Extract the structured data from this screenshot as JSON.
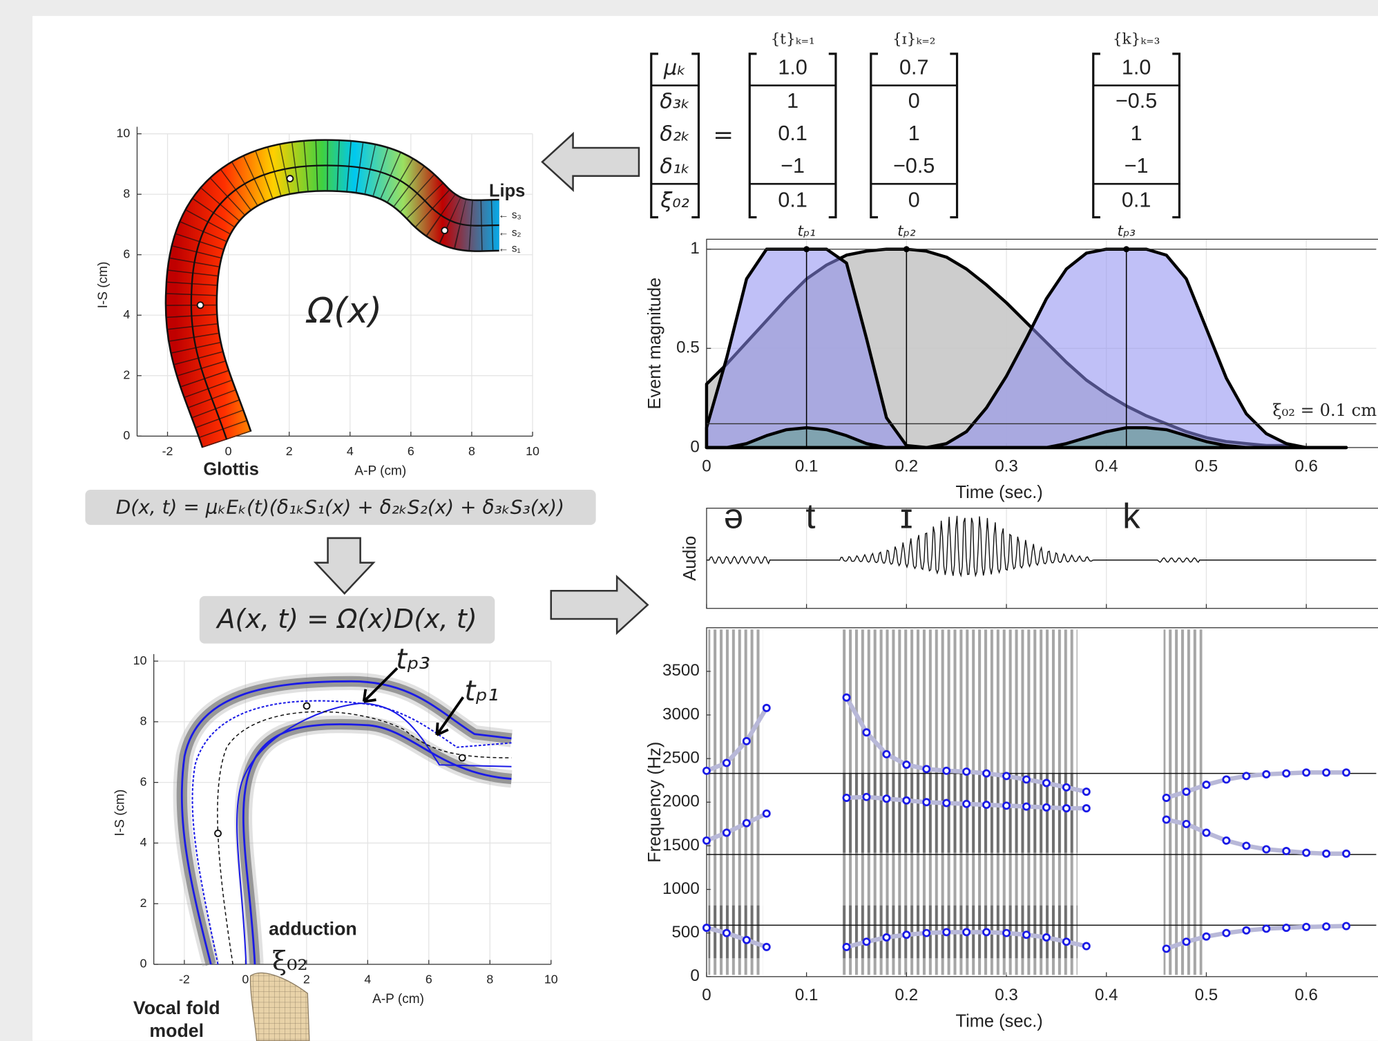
{
  "matrix": {
    "row_labels": [
      "μₖ",
      "δ₃ₖ",
      "δ₂ₖ",
      "δ₁ₖ",
      "ξ₀₂"
    ],
    "equals": "=",
    "columns": [
      {
        "header": "{t}ₖ₌₁",
        "values": [
          "1.0",
          "1",
          "0.1",
          "−1",
          "0.1"
        ]
      },
      {
        "header": "{ɪ}ₖ₌₂",
        "values": [
          "0.7",
          "0",
          "1",
          "−0.5",
          "0"
        ]
      },
      {
        "header": "{k}ₖ₌₃",
        "values": [
          "1.0",
          "−0.5",
          "1",
          "−1",
          "0.1"
        ]
      }
    ]
  },
  "equations": {
    "D": "D(x, t) = μₖEₖ(t)(δ₁ₖS₁(x) + δ₂ₖS₂(x) + δ₃ₖS₃(x))",
    "A": "A(x, t) = Ω(x)D(x, t)"
  },
  "chart_data": [
    {
      "type": "tract",
      "xlabel": "A-P (cm)",
      "ylabel": "I-S (cm)",
      "xlim": [
        -3,
        10
      ],
      "ylim": [
        0,
        10
      ],
      "xticks": [
        -2,
        0,
        2,
        4,
        6,
        8,
        10
      ],
      "yticks": [
        0,
        2,
        4,
        6,
        8,
        10
      ],
      "grid": true,
      "labels": {
        "lips": "Lips",
        "glottis": "Glottis",
        "region": "Ω(x)",
        "s3": "← s₃",
        "s2": "← s₂",
        "s1": "← s₁"
      }
    },
    {
      "type": "area",
      "xlabel": "Time (sec.)",
      "ylabel": "Event magnitude",
      "xlim": [
        0,
        0.67
      ],
      "ylim": [
        0,
        1.05
      ],
      "xticks": [
        0,
        0.1,
        0.2,
        0.3,
        0.4,
        0.5,
        0.6
      ],
      "yticks": [
        0,
        0.5,
        1
      ],
      "grid": true,
      "x": [
        0,
        0.02,
        0.04,
        0.06,
        0.08,
        0.1,
        0.12,
        0.14,
        0.16,
        0.18,
        0.2,
        0.22,
        0.24,
        0.26,
        0.28,
        0.3,
        0.32,
        0.34,
        0.36,
        0.38,
        0.4,
        0.42,
        0.44,
        0.46,
        0.48,
        0.5,
        0.52,
        0.54,
        0.56,
        0.58,
        0.6,
        0.62,
        0.64
      ],
      "series": [
        {
          "color": "#c8c8c8",
          "values": [
            0.32,
            0.42,
            0.53,
            0.64,
            0.75,
            0.85,
            0.92,
            0.97,
            0.99,
            1,
            1,
            0.99,
            0.96,
            0.9,
            0.82,
            0.73,
            0.63,
            0.53,
            0.43,
            0.34,
            0.27,
            0.21,
            0.16,
            0.12,
            0.08,
            0.05,
            0.03,
            0.02,
            0.01,
            0.01,
            0,
            0,
            0
          ]
        },
        {
          "color": "#8c8cf0",
          "values": [
            0.1,
            0.45,
            0.85,
            1,
            1,
            1,
            1,
            0.93,
            0.55,
            0.15,
            0.01,
            0,
            0,
            0,
            0,
            0,
            0,
            0,
            0,
            0,
            0,
            0,
            0,
            0,
            0,
            0,
            0,
            0,
            0,
            0,
            0,
            0,
            0
          ]
        },
        {
          "color": "#8c8cf0",
          "values": [
            0,
            0,
            0,
            0,
            0,
            0,
            0,
            0,
            0,
            0,
            0,
            0,
            0.02,
            0.08,
            0.2,
            0.36,
            0.55,
            0.75,
            0.9,
            0.98,
            1,
            1,
            1,
            0.97,
            0.85,
            0.6,
            0.35,
            0.17,
            0.07,
            0.02,
            0,
            0,
            0
          ]
        },
        {
          "color": "#5f9f88",
          "values": [
            0,
            0,
            0.02,
            0.06,
            0.09,
            0.1,
            0.09,
            0.06,
            0.02,
            0,
            0,
            0,
            0,
            0,
            0,
            0,
            0,
            0,
            0.02,
            0.05,
            0.08,
            0.1,
            0.1,
            0.09,
            0.06,
            0.03,
            0.01,
            0,
            0,
            0,
            0,
            0,
            0
          ]
        }
      ],
      "peaks": [
        {
          "value": 0.1,
          "label": "tₚ₁"
        },
        {
          "value": 0.2,
          "label": "tₚ₂"
        },
        {
          "value": 0.42,
          "label": "tₚ₃"
        }
      ],
      "hlines": [
        1,
        0.12
      ],
      "annotation": "ξ₀₂ = 0.1 cm"
    },
    {
      "type": "waveform",
      "ylabel": "Audio",
      "xlim": [
        0,
        0.67
      ],
      "xticks": [
        0,
        0.1,
        0.2,
        0.3,
        0.4,
        0.5,
        0.6
      ],
      "grid": true,
      "phonemes": [
        {
          "value": 0.027,
          "label": "ə"
        },
        {
          "value": 0.104,
          "label": "t"
        },
        {
          "value": 0.2,
          "label": "ɪ"
        },
        {
          "value": 0.425,
          "label": "k"
        }
      ]
    },
    {
      "type": "scatter",
      "xlabel": "Time (sec.)",
      "ylabel": "Frequency (Hz)",
      "xlim": [
        0,
        0.67
      ],
      "ylim": [
        0,
        4000
      ],
      "xticks": [
        0,
        0.1,
        0.2,
        0.3,
        0.4,
        0.5,
        0.6
      ],
      "yticks": [
        0,
        500,
        1000,
        1500,
        2000,
        2500,
        3000,
        3500
      ],
      "grid": false,
      "x": [
        0,
        0.02,
        0.04,
        0.06,
        0.08,
        0.1,
        0.12,
        0.14,
        0.16,
        0.18,
        0.2,
        0.22,
        0.24,
        0.26,
        0.28,
        0.3,
        0.32,
        0.34,
        0.36,
        0.38,
        0.4,
        0.42,
        0.44,
        0.46,
        0.48,
        0.5,
        0.52,
        0.54,
        0.56,
        0.58,
        0.6,
        0.62,
        0.64
      ],
      "series": [
        {
          "color": "#1a1ae6",
          "values": [
            560,
            500,
            420,
            340,
            null,
            null,
            null,
            340,
            400,
            450,
            480,
            500,
            510,
            510,
            510,
            500,
            480,
            450,
            400,
            350,
            null,
            null,
            null,
            320,
            400,
            460,
            500,
            530,
            550,
            560,
            570,
            575,
            580
          ]
        },
        {
          "color": "#1a1ae6",
          "values": [
            1560,
            1650,
            1760,
            1870,
            null,
            null,
            null,
            2050,
            2060,
            2040,
            2020,
            2000,
            1990,
            1980,
            1970,
            1960,
            1950,
            1940,
            1930,
            1930,
            null,
            null,
            null,
            1800,
            1750,
            1650,
            1560,
            1500,
            1460,
            1440,
            1420,
            1410,
            1410
          ]
        },
        {
          "color": "#1a1ae6",
          "values": [
            2360,
            2450,
            2700,
            3080,
            null,
            null,
            null,
            3200,
            2800,
            2550,
            2430,
            2380,
            2360,
            2350,
            2330,
            2300,
            2260,
            2220,
            2170,
            2120,
            null,
            null,
            null,
            2050,
            2120,
            2200,
            2260,
            2300,
            2320,
            2330,
            2340,
            2340,
            2340
          ]
        }
      ],
      "hlines": [
        2330,
        1400,
        590
      ]
    },
    {
      "type": "overlay",
      "xlabel": "A-P (cm)",
      "ylabel": "I-S (cm)",
      "xlim": [
        -3,
        10
      ],
      "ylim": [
        0,
        10
      ],
      "xticks": [
        -2,
        0,
        2,
        4,
        6,
        8,
        10
      ],
      "yticks": [
        0,
        2,
        4,
        6,
        8,
        10
      ],
      "grid": true,
      "labels": {
        "tp3": "tₚ₃",
        "tp1": "tₚ₁",
        "adduction": "adduction",
        "xi": "ξ₀₂",
        "vf1": "Vocal fold",
        "vf2": "model"
      }
    }
  ]
}
